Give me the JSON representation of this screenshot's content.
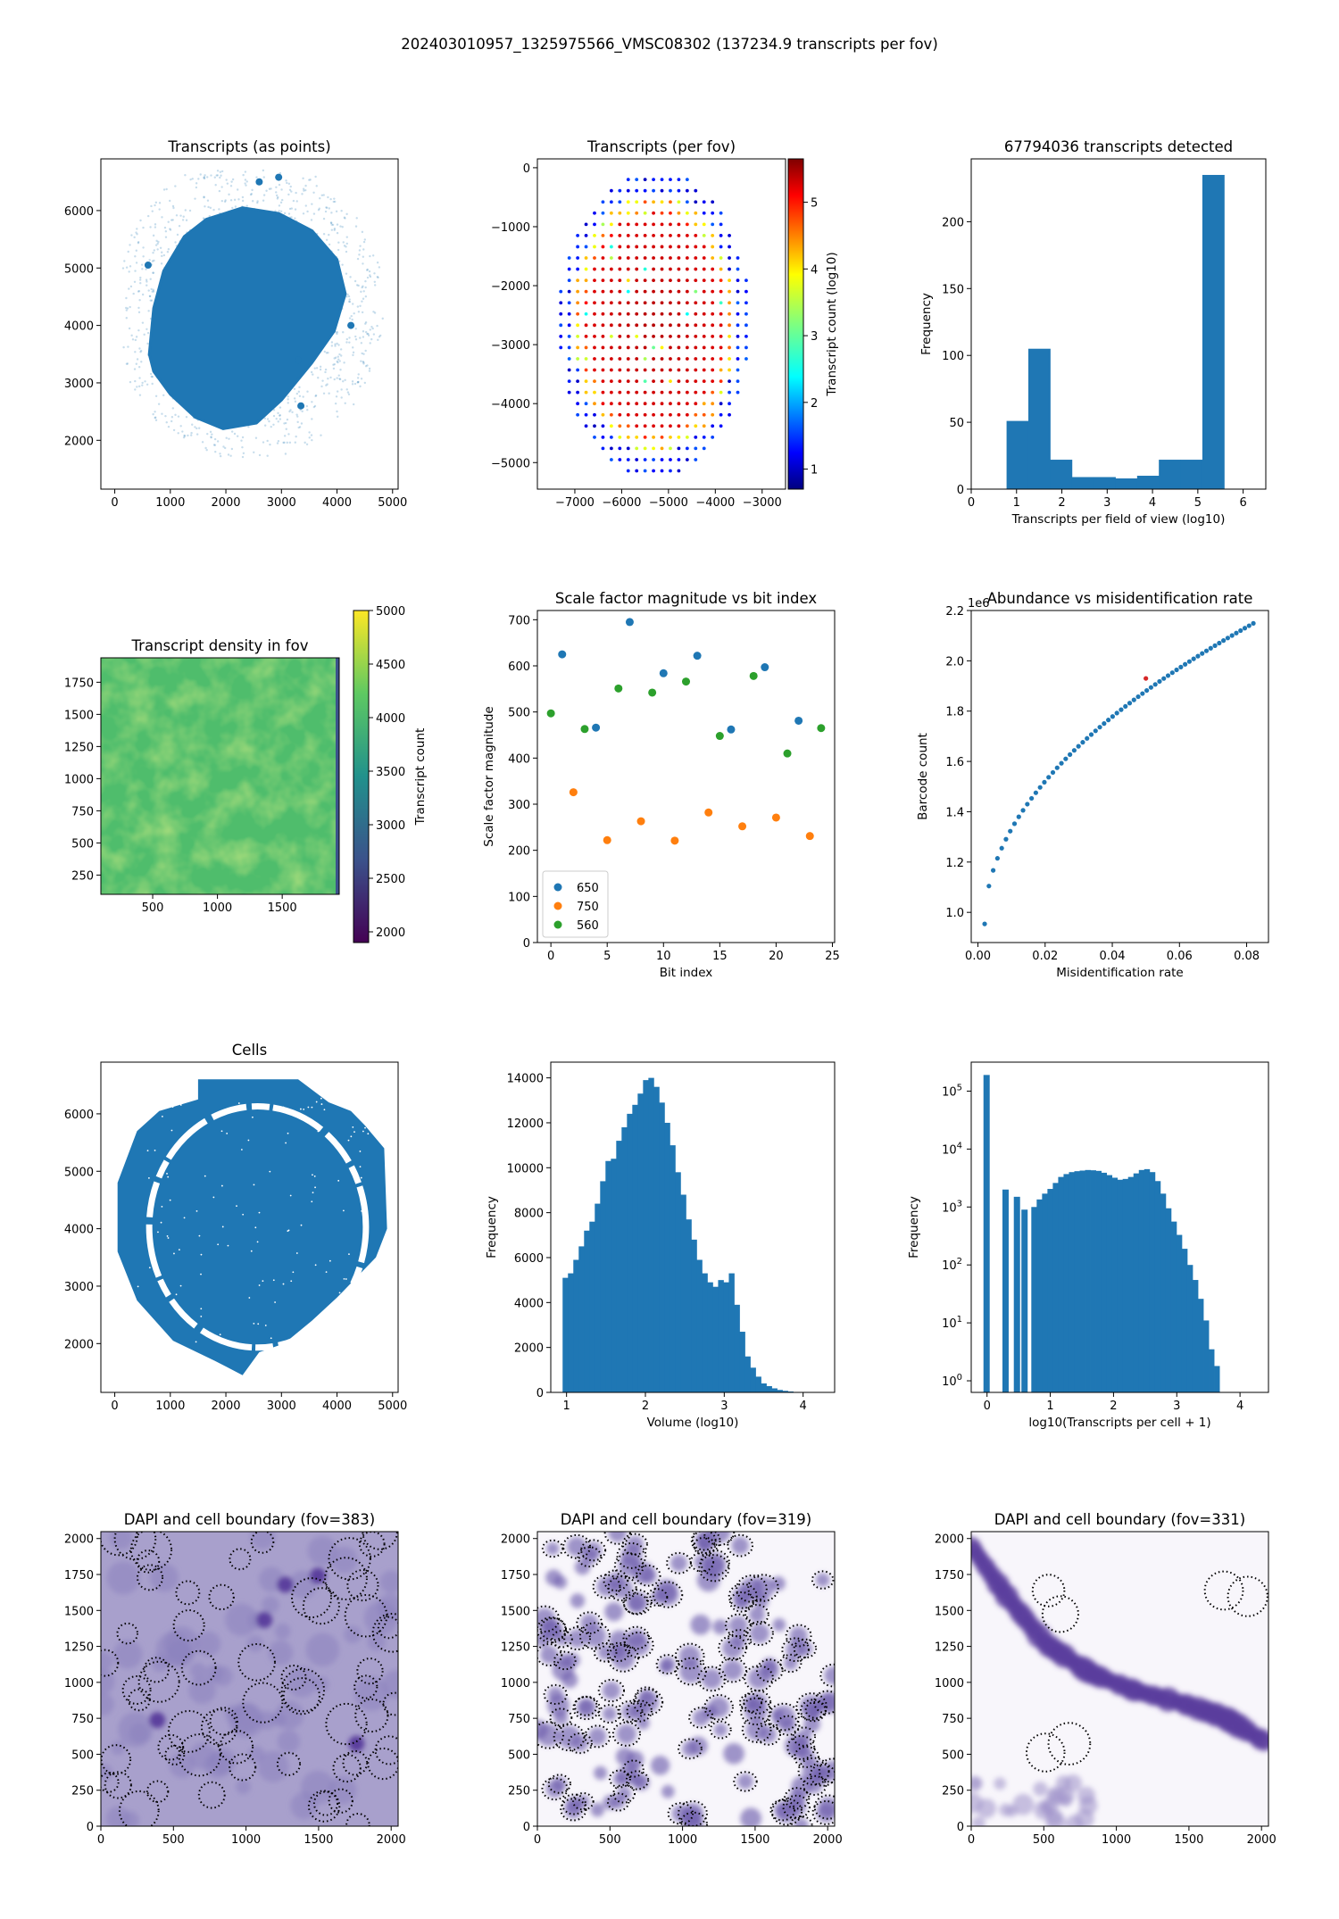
{
  "suptitle": "202403010957_1325975566_VMSC08302 (137234.9 transcripts per fov)",
  "colors": {
    "blue": "#1f77b4",
    "orange": "#ff7f0e",
    "green": "#2ca02c",
    "red": "#d62728",
    "dapi": "#5b3f9e"
  },
  "chart_data": [
    {
      "id": "tx_points",
      "type": "scatter",
      "title": "Transcripts (as points)",
      "xlabel": "",
      "ylabel": "",
      "xlim": [
        -250,
        5100
      ],
      "ylim": [
        1150,
        6900
      ],
      "xticks": [
        0,
        1000,
        2000,
        3000,
        4000,
        5000
      ],
      "yticks": [
        2000,
        3000,
        4000,
        5000,
        6000
      ],
      "blob": [
        [
          620,
          3500
        ],
        [
          700,
          4300
        ],
        [
          880,
          4950
        ],
        [
          1250,
          5550
        ],
        [
          1650,
          5850
        ],
        [
          2300,
          6050
        ],
        [
          2950,
          5950
        ],
        [
          3550,
          5650
        ],
        [
          4000,
          5150
        ],
        [
          4150,
          4550
        ],
        [
          3950,
          3900
        ],
        [
          3550,
          3350
        ],
        [
          3000,
          2700
        ],
        [
          2550,
          2300
        ],
        [
          1950,
          2200
        ],
        [
          1450,
          2400
        ],
        [
          1000,
          2800
        ],
        [
          700,
          3200
        ]
      ]
    },
    {
      "id": "tx_per_fov",
      "type": "scatter",
      "title": "Transcripts (per fov)",
      "xlabel": "",
      "ylabel": "",
      "xlim": [
        -7800,
        -2500
      ],
      "ylim": [
        -5450,
        150
      ],
      "xticks": [
        -7000,
        -6000,
        -5000,
        -4000,
        -3000
      ],
      "yticks": [
        0,
        -1000,
        -2000,
        -3000,
        -4000,
        -5000
      ],
      "colorbar": {
        "label": "Transcript count (log10)",
        "min": 0.7,
        "max": 5.65,
        "ticks": [
          1,
          2,
          3,
          4,
          5
        ],
        "cmap": "jet"
      },
      "grid": {
        "x0": -7300,
        "dx": 180,
        "y0": -200,
        "dy": 190,
        "cx": -5300,
        "cy": -2640,
        "rx": 2050,
        "ry": 2600
      }
    },
    {
      "id": "tx_hist",
      "type": "bar",
      "title": "67794036 transcripts detected",
      "xlabel": "Transcripts per field of view (log10)",
      "ylabel": "Frequency",
      "xlim": [
        0,
        6.5
      ],
      "ylim": [
        0,
        247
      ],
      "xticks": [
        0,
        1,
        2,
        3,
        4,
        5,
        6
      ],
      "yticks": [
        0,
        50,
        100,
        150,
        200
      ],
      "bins": [
        [
          0.78,
          1.26,
          51
        ],
        [
          1.26,
          1.74,
          105
        ],
        [
          1.74,
          2.22,
          22
        ],
        [
          2.22,
          2.7,
          9
        ],
        [
          2.7,
          3.18,
          9
        ],
        [
          3.18,
          3.66,
          8
        ],
        [
          3.66,
          4.14,
          10
        ],
        [
          4.14,
          4.62,
          22
        ],
        [
          4.62,
          5.1,
          22
        ],
        [
          5.1,
          5.58,
          235
        ]
      ]
    },
    {
      "id": "density",
      "type": "heatmap",
      "title": "Transcript density in fov",
      "xlabel": "",
      "ylabel": "",
      "xlim": [
        100,
        1940
      ],
      "ylim": [
        100,
        1940
      ],
      "xticks": [
        500,
        1000,
        1500
      ],
      "yticks": [
        250,
        500,
        750,
        1000,
        1250,
        1500,
        1750
      ],
      "colorbar": {
        "label": "Transcript count",
        "min": 1900,
        "max": 5000,
        "ticks": [
          2000,
          2500,
          3000,
          3500,
          4000,
          4500,
          5000
        ],
        "cmap": "viridis"
      }
    },
    {
      "id": "scale_factor",
      "type": "scatter",
      "title": "Scale factor magnitude vs bit index",
      "xlabel": "Bit index",
      "ylabel": "Scale factor magnitude",
      "xlim": [
        -1.2,
        25.2
      ],
      "ylim": [
        0,
        720
      ],
      "xticks": [
        0,
        5,
        10,
        15,
        20,
        25
      ],
      "yticks": [
        0,
        100,
        200,
        300,
        400,
        500,
        600,
        700
      ],
      "legend_position": "lower-left",
      "series": [
        {
          "name": "650",
          "color": "#1f77b4",
          "x": [
            1,
            4,
            7,
            10,
            13,
            16,
            19,
            22
          ],
          "y": [
            625,
            466,
            695,
            584,
            622,
            462,
            597,
            481
          ]
        },
        {
          "name": "750",
          "color": "#ff7f0e",
          "x": [
            2,
            5,
            8,
            11,
            14,
            17,
            20,
            23
          ],
          "y": [
            326,
            222,
            263,
            221,
            282,
            252,
            271,
            231
          ]
        },
        {
          "name": "560",
          "color": "#2ca02c",
          "x": [
            0,
            3,
            6,
            9,
            12,
            15,
            18,
            21,
            24
          ],
          "y": [
            497,
            463,
            551,
            542,
            566,
            448,
            578,
            410,
            465
          ]
        }
      ]
    },
    {
      "id": "abundance",
      "type": "scatter",
      "title": "Abundance vs misidentification rate",
      "xlabel": "Misidentification rate",
      "ylabel": "Barcode count",
      "offset_label": "1e6",
      "xlim": [
        -0.002,
        0.0865
      ],
      "ylim": [
        0.88,
        2.2
      ],
      "xticks": [
        0.0,
        0.02,
        0.04,
        0.06,
        0.08
      ],
      "yticks": [
        1.0,
        1.2,
        1.4,
        1.6,
        1.8,
        2.0,
        2.2
      ],
      "curve": {
        "x_start": 0.002,
        "x_end": 0.082,
        "n": 64,
        "a": 0.954,
        "b": 1.195,
        "p": 0.5
      },
      "highlight": {
        "x": 0.05,
        "y": 1.93,
        "color": "#d62728"
      }
    },
    {
      "id": "cells",
      "type": "scatter",
      "title": "Cells",
      "xlabel": "",
      "ylabel": "",
      "xlim": [
        -250,
        5100
      ],
      "ylim": [
        1150,
        6900
      ],
      "xticks": [
        0,
        1000,
        2000,
        3000,
        4000,
        5000
      ],
      "yticks": [
        2000,
        3000,
        4000,
        5000,
        6000
      ],
      "outline": [
        [
          1500,
          6600
        ],
        [
          3300,
          6600
        ],
        [
          3850,
          6200
        ],
        [
          4250,
          6050
        ],
        [
          4500,
          5800
        ],
        [
          4850,
          5400
        ],
        [
          4900,
          4000
        ],
        [
          4700,
          3500
        ],
        [
          4300,
          3100
        ],
        [
          4000,
          2800
        ],
        [
          3550,
          2400
        ],
        [
          3050,
          2000
        ],
        [
          2600,
          1850
        ],
        [
          2300,
          1450
        ],
        [
          1800,
          1700
        ],
        [
          1050,
          2050
        ],
        [
          400,
          2750
        ],
        [
          50,
          3600
        ],
        [
          50,
          4800
        ],
        [
          400,
          5700
        ],
        [
          800,
          6050
        ],
        [
          1500,
          6250
        ]
      ],
      "ring": {
        "cx": 2570,
        "cy": 4030,
        "rx": 1950,
        "ry": 2100
      }
    },
    {
      "id": "volume_hist",
      "type": "bar",
      "title": "",
      "xlabel": "Volume (log10)",
      "ylabel": "Frequency",
      "xlim": [
        0.8,
        4.4
      ],
      "ylim": [
        0,
        14700
      ],
      "xticks": [
        1,
        2,
        3,
        4
      ],
      "yticks": [
        0,
        2000,
        4000,
        6000,
        8000,
        10000,
        12000,
        14000
      ],
      "bin_start": 0.95,
      "bin_width": 0.068,
      "values": [
        5100,
        5300,
        5900,
        6500,
        7200,
        7600,
        8400,
        9400,
        10300,
        10400,
        11200,
        11800,
        12400,
        12800,
        13300,
        13900,
        14000,
        13600,
        12900,
        12000,
        11000,
        9800,
        8800,
        7700,
        6800,
        5900,
        5300,
        4900,
        4700,
        5000,
        4900,
        5300,
        3900,
        2700,
        1600,
        1100,
        700,
        400,
        280,
        180,
        110,
        70,
        40,
        20,
        10
      ]
    },
    {
      "id": "tx_per_cell_hist",
      "type": "bar",
      "title": "",
      "xlabel": "log10(Transcripts per cell + 1)",
      "ylabel": "Frequency",
      "yscale": "log",
      "xlim": [
        -0.25,
        4.45
      ],
      "ylim_log10": [
        -0.2,
        5.5
      ],
      "xticks": [
        0,
        1,
        2,
        3,
        4
      ],
      "ytick_labels": [
        "10^0",
        "10^1",
        "10^2",
        "10^3",
        "10^4",
        "10^5"
      ],
      "bars": [
        [
          0,
          190000
        ],
        [
          0.3,
          2000
        ],
        [
          0.48,
          1500
        ],
        [
          0.6,
          900
        ]
      ],
      "bin_start": 0.7,
      "bin_width": 0.085,
      "values": [
        1000,
        1350,
        1700,
        2050,
        2600,
        3300,
        3700,
        4000,
        4150,
        4250,
        4350,
        4300,
        4200,
        3900,
        3550,
        3200,
        2950,
        3050,
        3300,
        3800,
        4350,
        4500,
        4000,
        2800,
        1700,
        950,
        560,
        330,
        190,
        100,
        55,
        26,
        11,
        3.5,
        1.8
      ]
    },
    {
      "id": "dapi_383",
      "type": "image",
      "title": "DAPI and cell boundary (fov=383)",
      "xlim": [
        0,
        2048
      ],
      "ylim": [
        0,
        2048
      ],
      "xticks": [
        0,
        500,
        1000,
        1500,
        2000
      ],
      "yticks": [
        0,
        250,
        500,
        750,
        1000,
        1250,
        1500,
        1750,
        2000
      ]
    },
    {
      "id": "dapi_319",
      "type": "image",
      "title": "DAPI and cell boundary (fov=319)",
      "xlim": [
        0,
        2048
      ],
      "ylim": [
        0,
        2048
      ],
      "xticks": [
        0,
        500,
        1000,
        1500,
        2000
      ],
      "yticks": [
        0,
        250,
        500,
        750,
        1000,
        1250,
        1500,
        1750,
        2000
      ]
    },
    {
      "id": "dapi_331",
      "type": "image",
      "title": "DAPI and cell boundary (fov=331)",
      "xlim": [
        0,
        2048
      ],
      "ylim": [
        0,
        2048
      ],
      "xticks": [
        0,
        500,
        1000,
        1500,
        2000
      ],
      "yticks": [
        0,
        250,
        500,
        750,
        1000,
        1250,
        1500,
        1750,
        2000
      ]
    }
  ]
}
